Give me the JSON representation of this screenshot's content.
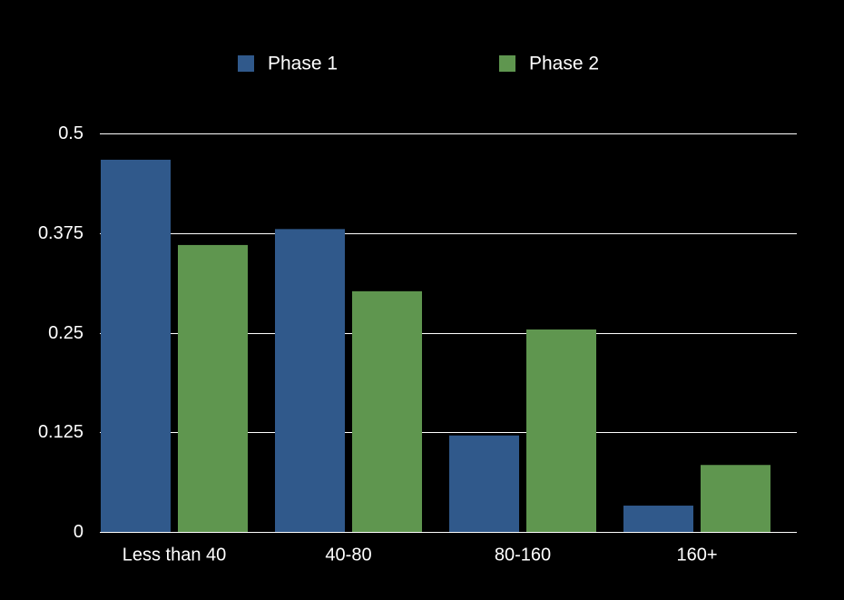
{
  "chart_data": {
    "type": "bar",
    "title": "",
    "xlabel": "",
    "ylabel": "",
    "categories": [
      "Less than 40",
      "40-80",
      "80-160",
      "160+"
    ],
    "series": [
      {
        "name": "Phase 1",
        "color": "#30598B",
        "values": [
          0.467,
          0.38,
          0.121,
          0.033
        ]
      },
      {
        "name": "Phase 2",
        "color": "#5F964F",
        "values": [
          0.36,
          0.302,
          0.254,
          0.084
        ]
      }
    ],
    "ylim": [
      0,
      0.5
    ],
    "yticks": [
      "0",
      "0.125",
      "0.25",
      "0.375",
      "0.5"
    ],
    "grid": true,
    "legend_position": "top",
    "background": "#000000",
    "grid_color": "#FFFFFF",
    "text_color": "#FFFFFF"
  }
}
